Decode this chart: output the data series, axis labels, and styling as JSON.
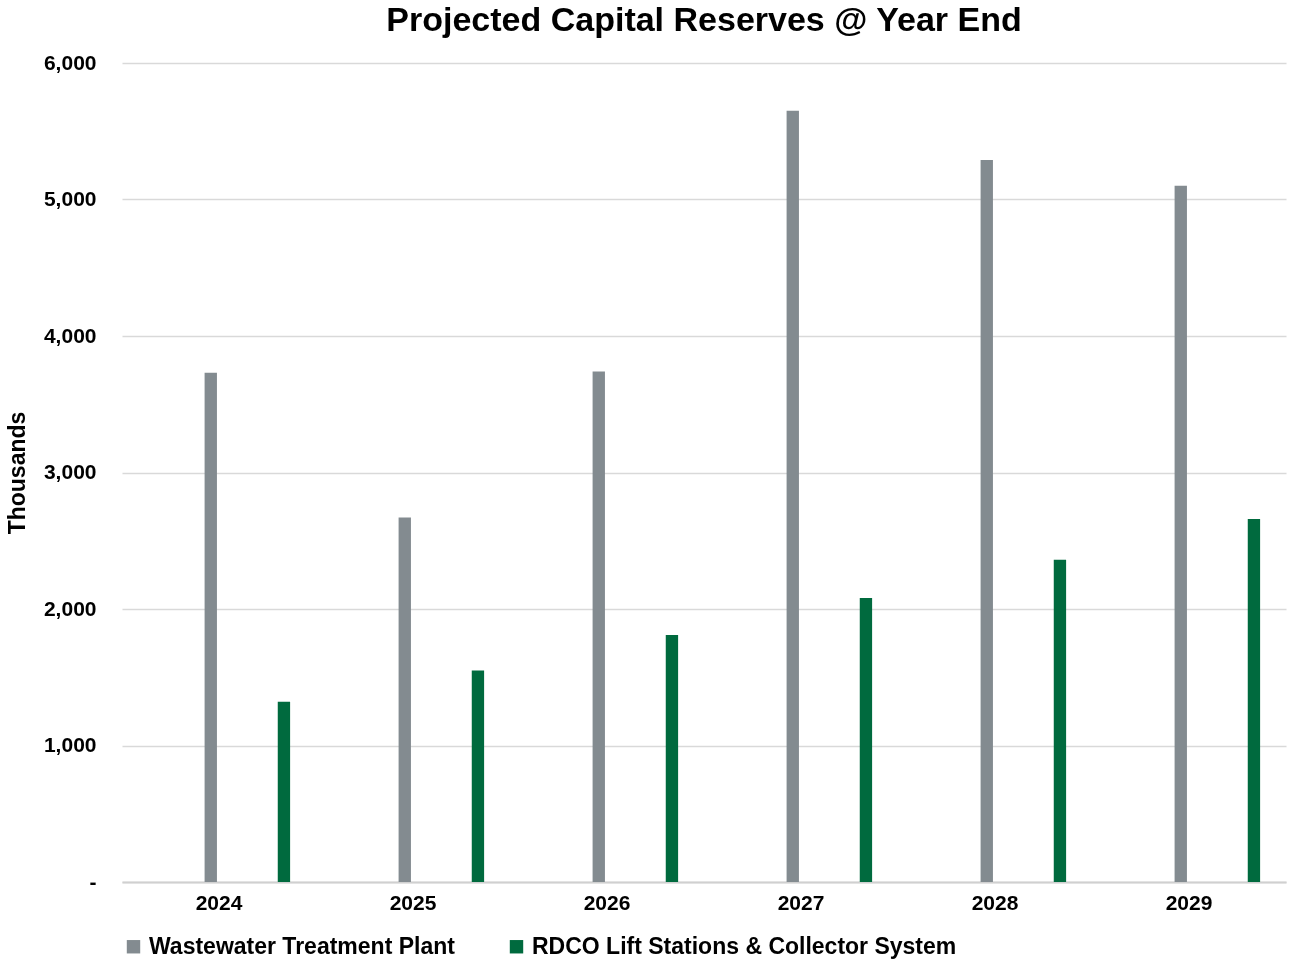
{
  "chart_data": {
    "type": "bar",
    "title": "Projected Capital Reserves @ Year End",
    "ylabel": "Thousands",
    "categories": [
      "2024",
      "2025",
      "2026",
      "2027",
      "2028",
      "2029"
    ],
    "series": [
      {
        "name": "Wastewater Treatment Plant",
        "color": "#838b90",
        "values": [
          3730,
          2670,
          3740,
          5650,
          5290,
          5100
        ]
      },
      {
        "name": "RDCO Lift Stations & Collector System",
        "color": "#006a3e",
        "values": [
          1320,
          1550,
          1810,
          2080,
          2360,
          2660
        ]
      }
    ],
    "ylim": [
      0,
      6000
    ],
    "yticks": [
      {
        "value": 0,
        "label": "-"
      },
      {
        "value": 1000,
        "label": "1,000"
      },
      {
        "value": 2000,
        "label": "2,000"
      },
      {
        "value": 3000,
        "label": "3,000"
      },
      {
        "value": 4000,
        "label": "4,000"
      },
      {
        "value": 5000,
        "label": "5,000"
      },
      {
        "value": 6000,
        "label": "6,000"
      }
    ],
    "grid": "y",
    "legend": "bottom"
  }
}
